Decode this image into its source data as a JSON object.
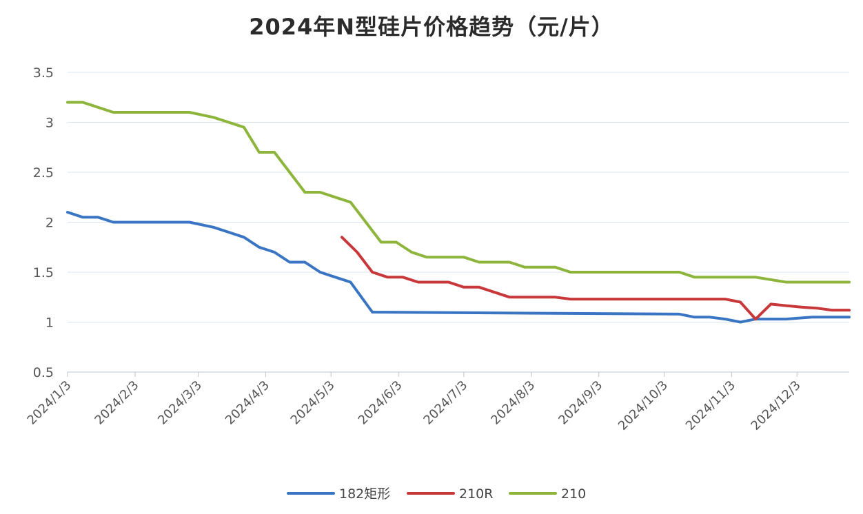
{
  "chart_data": {
    "type": "line",
    "title": "2024年N型硅片价格趋势（元/片）",
    "xlabel": "",
    "ylabel": "",
    "ylim": [
      0.5,
      3.5
    ],
    "yticks": [
      "0.5",
      "1",
      "1.5",
      "2",
      "2.5",
      "3",
      "3.5"
    ],
    "x_ticks": [
      "2024/1/3",
      "2024/2/3",
      "2024/3/3",
      "2024/4/3",
      "2024/5/3",
      "2024/6/3",
      "2024/7/3",
      "2024/8/3",
      "2024/9/3",
      "2024/10/3",
      "2024/11/3",
      "2024/12/3"
    ],
    "x_range": [
      "2024/1/3",
      "2024/12/27"
    ],
    "grid": "horizontal",
    "legend_position": "bottom",
    "series": [
      {
        "name": "182矩形",
        "color": "#3a75c4",
        "points": [
          [
            "2024/1/3",
            2.1
          ],
          [
            "2024/1/10",
            2.05
          ],
          [
            "2024/1/17",
            2.05
          ],
          [
            "2024/1/24",
            2.0
          ],
          [
            "2024/2/28",
            2.0
          ],
          [
            "2024/3/10",
            1.95
          ],
          [
            "2024/3/17",
            1.9
          ],
          [
            "2024/3/24",
            1.85
          ],
          [
            "2024/3/31",
            1.75
          ],
          [
            "2024/4/7",
            1.7
          ],
          [
            "2024/4/14",
            1.6
          ],
          [
            "2024/4/21",
            1.6
          ],
          [
            "2024/4/28",
            1.5
          ],
          [
            "2024/5/5",
            1.45
          ],
          [
            "2024/5/12",
            1.4
          ],
          [
            "2024/5/22",
            1.1
          ],
          [
            "2024/10/10",
            1.08
          ],
          [
            "2024/10/17",
            1.05
          ],
          [
            "2024/10/24",
            1.05
          ],
          [
            "2024/10/31",
            1.03
          ],
          [
            "2024/11/7",
            1.0
          ],
          [
            "2024/11/14",
            1.03
          ],
          [
            "2024/11/28",
            1.03
          ],
          [
            "2024/12/10",
            1.05
          ],
          [
            "2024/12/27",
            1.05
          ]
        ]
      },
      {
        "name": "210R",
        "color": "#c8383a",
        "points": [
          [
            "2024/5/8",
            1.85
          ],
          [
            "2024/5/15",
            1.7
          ],
          [
            "2024/5/22",
            1.5
          ],
          [
            "2024/5/29",
            1.45
          ],
          [
            "2024/6/5",
            1.45
          ],
          [
            "2024/6/12",
            1.4
          ],
          [
            "2024/6/26",
            1.4
          ],
          [
            "2024/7/3",
            1.35
          ],
          [
            "2024/7/10",
            1.35
          ],
          [
            "2024/7/24",
            1.25
          ],
          [
            "2024/8/14",
            1.25
          ],
          [
            "2024/8/21",
            1.23
          ],
          [
            "2024/10/31",
            1.23
          ],
          [
            "2024/11/7",
            1.2
          ],
          [
            "2024/11/14",
            1.03
          ],
          [
            "2024/11/21",
            1.18
          ],
          [
            "2024/12/5",
            1.15
          ],
          [
            "2024/12/12",
            1.14
          ],
          [
            "2024/12/19",
            1.12
          ],
          [
            "2024/12/27",
            1.12
          ]
        ]
      },
      {
        "name": "210",
        "color": "#8db53c",
        "points": [
          [
            "2024/1/3",
            3.2
          ],
          [
            "2024/1/10",
            3.2
          ],
          [
            "2024/1/24",
            3.1
          ],
          [
            "2024/2/28",
            3.1
          ],
          [
            "2024/3/10",
            3.05
          ],
          [
            "2024/3/17",
            3.0
          ],
          [
            "2024/3/24",
            2.95
          ],
          [
            "2024/3/31",
            2.7
          ],
          [
            "2024/4/7",
            2.7
          ],
          [
            "2024/4/21",
            2.3
          ],
          [
            "2024/4/28",
            2.3
          ],
          [
            "2024/5/5",
            2.25
          ],
          [
            "2024/5/12",
            2.2
          ],
          [
            "2024/5/26",
            1.8
          ],
          [
            "2024/6/2",
            1.8
          ],
          [
            "2024/6/9",
            1.7
          ],
          [
            "2024/6/16",
            1.65
          ],
          [
            "2024/7/3",
            1.65
          ],
          [
            "2024/7/10",
            1.6
          ],
          [
            "2024/7/24",
            1.6
          ],
          [
            "2024/7/31",
            1.55
          ],
          [
            "2024/8/14",
            1.55
          ],
          [
            "2024/8/21",
            1.5
          ],
          [
            "2024/10/10",
            1.5
          ],
          [
            "2024/10/17",
            1.45
          ],
          [
            "2024/11/14",
            1.45
          ],
          [
            "2024/11/28",
            1.4
          ],
          [
            "2024/12/27",
            1.4
          ]
        ]
      }
    ]
  }
}
